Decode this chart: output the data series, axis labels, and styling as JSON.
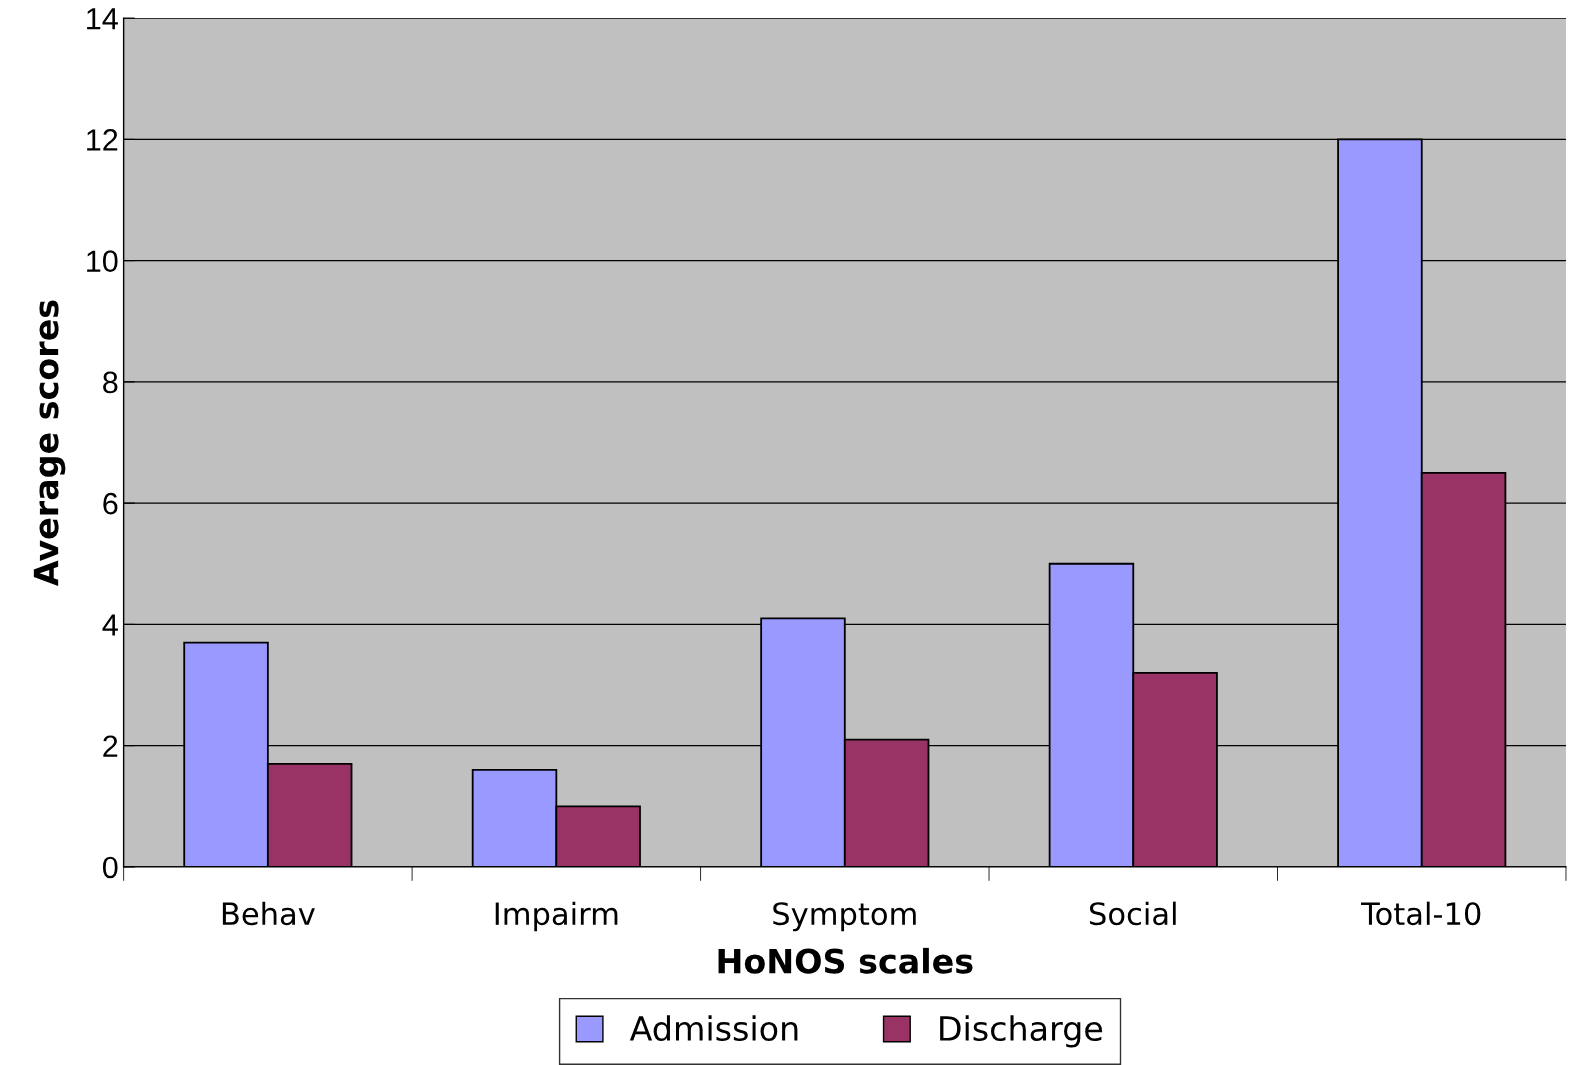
{
  "chart_data": {
    "type": "bar",
    "xlabel": "HoNOS scales",
    "ylabel": "Average scores",
    "categories": [
      "Behav",
      "Impairm",
      "Symptom",
      "Social",
      "Total-10"
    ],
    "series": [
      {
        "name": "Admission",
        "color": "#9999ff",
        "values": [
          3.7,
          1.6,
          4.1,
          5.0,
          12.0
        ]
      },
      {
        "name": "Discharge",
        "color": "#993366",
        "values": [
          1.7,
          1.0,
          2.1,
          3.2,
          6.5
        ]
      }
    ],
    "ylim": [
      0,
      14
    ],
    "yticks": [
      0,
      2,
      4,
      6,
      8,
      10,
      12,
      14
    ],
    "grid": "y",
    "legend": "bottom"
  }
}
